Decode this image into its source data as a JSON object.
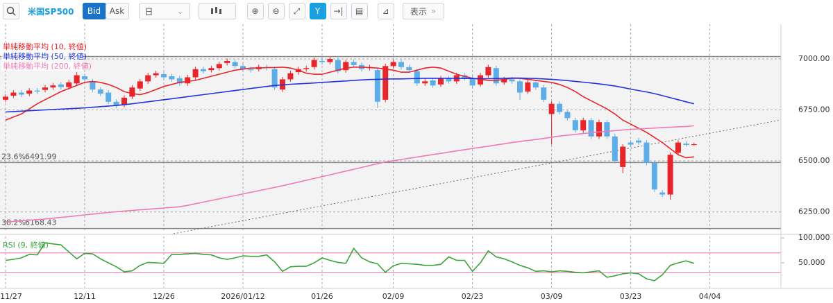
{
  "toolbar": {
    "symbol": "米国SP500",
    "bid": "Bid",
    "ask": "Ask",
    "period": "日",
    "display": "表示"
  },
  "chart_data": [
    {
      "type": "candlestick",
      "categories": [
        "11/27",
        null,
        null,
        null,
        null,
        null,
        null,
        null,
        null,
        null,
        "12/11",
        null,
        null,
        null,
        null,
        null,
        null,
        null,
        null,
        null,
        "12/26",
        null,
        null,
        null,
        null,
        null,
        null,
        null,
        null,
        null,
        "2026/01/12",
        null,
        null,
        null,
        null,
        null,
        null,
        null,
        null,
        null,
        "01/26",
        null,
        null,
        null,
        null,
        null,
        null,
        null,
        null,
        "02/09",
        null,
        null,
        null,
        null,
        null,
        null,
        null,
        null,
        null,
        "02/23",
        null,
        null,
        null,
        null,
        null,
        null,
        null,
        null,
        null,
        "03/09",
        null,
        null,
        null,
        null,
        null,
        null,
        null,
        null,
        null,
        "03/23",
        null,
        null,
        null,
        null,
        null,
        null,
        null,
        null,
        null,
        "04/04"
      ],
      "open": [
        6800,
        6820,
        6835,
        6830,
        6845,
        6848,
        6860,
        6875,
        6862,
        6880,
        6915,
        6890,
        6850,
        6835,
        6790,
        6775,
        6815,
        6855,
        6890,
        6920,
        6925,
        6915,
        6905,
        6880,
        6910,
        6950,
        6945,
        6955,
        6980,
        6985,
        6965,
        6950,
        6950,
        6960,
        6950,
        6850,
        6900,
        6935,
        6950,
        6960,
        6990,
        6985,
        6995,
        6945,
        6985,
        6970,
        6955,
        6945,
        6800,
        6965,
        6985,
        6960,
        6940,
        6880,
        6895,
        6875,
        6905,
        6890,
        6920,
        6905,
        6875,
        6920,
        6955,
        6885,
        6900,
        6890,
        6840,
        6885,
        6860,
        6730,
        6780,
        6740,
        6700,
        6650,
        6700,
        6620,
        6690,
        6620,
        6470,
        6590,
        6600,
        6590,
        6490,
        6345,
        6335,
        6540,
        6585,
        6578,
        null,
        null
      ],
      "high": [
        6827,
        6847,
        6847,
        6857,
        6857,
        6872,
        6882,
        6887,
        6897,
        6935,
        6927,
        6902,
        6862,
        6847,
        6802,
        6822,
        6872,
        6902,
        6932,
        6942,
        6937,
        6927,
        6917,
        6922,
        6962,
        6962,
        6967,
        6987,
        7002,
        6997,
        6977,
        6962,
        6972,
        6972,
        6962,
        6912,
        6942,
        6962,
        6967,
        7007,
        7012,
        7012,
        7007,
        6997,
        6997,
        6982,
        6972,
        6957,
        6977,
        6997,
        6997,
        6972,
        6952,
        6902,
        6907,
        6917,
        6917,
        6932,
        6932,
        6917,
        6932,
        6972,
        6967,
        6912,
        6912,
        6902,
        6897,
        6897,
        6872,
        6792,
        6792,
        6752,
        6712,
        6712,
        6712,
        6702,
        6702,
        6632,
        6582,
        6602,
        6612,
        6602,
        6502,
        6357,
        6542,
        6602,
        6597,
        6590,
        null,
        null
      ],
      "low": [
        6788,
        6808,
        6813,
        6818,
        6828,
        6836,
        6848,
        6850,
        6850,
        6868,
        6888,
        6838,
        6818,
        6778,
        6758,
        6763,
        6803,
        6843,
        6878,
        6908,
        6898,
        6888,
        6868,
        6868,
        6898,
        6928,
        6933,
        6943,
        6968,
        6953,
        6938,
        6933,
        6938,
        6943,
        6848,
        6838,
        6888,
        6923,
        6938,
        6948,
        6973,
        6973,
        6928,
        6933,
        6958,
        6938,
        6943,
        6760,
        6788,
        6953,
        6948,
        6933,
        6868,
        6868,
        6858,
        6863,
        6878,
        6878,
        6893,
        6858,
        6863,
        6908,
        6868,
        6873,
        6878,
        6800,
        6828,
        6848,
        6788,
        6580,
        6728,
        6698,
        6638,
        6638,
        6608,
        6608,
        6608,
        6488,
        6440,
        6568,
        6578,
        6478,
        6348,
        6323,
        6310,
        6528,
        6570,
        6575,
        null,
        null
      ],
      "close": [
        6815,
        6835,
        6825,
        6845,
        6840,
        6860,
        6870,
        6862,
        6885,
        6920,
        6900,
        6850,
        6830,
        6790,
        6770,
        6810,
        6860,
        6890,
        6920,
        6930,
        6910,
        6900,
        6880,
        6910,
        6950,
        6940,
        6955,
        6975,
        6990,
        6965,
        6950,
        6945,
        6960,
        6955,
        6860,
        6900,
        6930,
        6950,
        6955,
        6995,
        6985,
        7000,
        6940,
        6985,
        6970,
        6950,
        6960,
        6790,
        6965,
        6985,
        6960,
        6945,
        6880,
        6890,
        6870,
        6905,
        6890,
        6920,
        6905,
        6870,
        6920,
        6960,
        6880,
        6900,
        6890,
        6835,
        6885,
        6860,
        6800,
        6780,
        6740,
        6710,
        6650,
        6700,
        6620,
        6690,
        6620,
        6500,
        6570,
        6580,
        6590,
        6490,
        6360,
        6335,
        6530,
        6590,
        6578,
        6582,
        null,
        null
      ],
      "up_color": "#e8252b",
      "down_color": "#5dade8",
      "series": [
        {
          "name": "単純移動平均 (10, 終値)",
          "color": "#e8252b",
          "values": [
            6700,
            6715,
            6730,
            6755,
            6780,
            6800,
            6820,
            6840,
            6855,
            6870,
            6885,
            6890,
            6885,
            6875,
            6860,
            6840,
            6830,
            6825,
            6835,
            6850,
            6865,
            6875,
            6885,
            6890,
            6895,
            6905,
            6915,
            6925,
            6935,
            6945,
            6950,
            6955,
            6955,
            6958,
            6958,
            6960,
            6955,
            6945,
            6930,
            6925,
            6925,
            6935,
            6945,
            6955,
            6960,
            6960,
            6958,
            6955,
            6950,
            6945,
            6935,
            6935,
            6945,
            6955,
            6960,
            6955,
            6940,
            6925,
            6915,
            6905,
            6900,
            6895,
            6895,
            6900,
            6905,
            6905,
            6900,
            6895,
            6890,
            6885,
            6875,
            6860,
            6840,
            6815,
            6795,
            6775,
            6755,
            6730,
            6700,
            6680,
            6660,
            6640,
            6615,
            6590,
            6560,
            6530,
            6515,
            6520,
            null,
            null
          ]
        },
        {
          "name": "単純移動平均 (50, 終値)",
          "color": "#2233dd",
          "values": [
            6740,
            6742,
            6744,
            6746,
            6748,
            6750,
            6752,
            6754,
            6756,
            6758,
            6760,
            6763,
            6766,
            6769,
            6772,
            6776,
            6780,
            6785,
            6790,
            6795,
            6800,
            6805,
            6810,
            6815,
            6820,
            6825,
            6830,
            6835,
            6840,
            6845,
            6850,
            6855,
            6860,
            6865,
            6870,
            6873,
            6876,
            6878,
            6880,
            6882,
            6885,
            6887,
            6890,
            6892,
            6895,
            6897,
            6899,
            6900,
            6901,
            6902,
            6902,
            6903,
            6904,
            6905,
            6905,
            6905,
            6905,
            6905,
            6904,
            6904,
            6903,
            6903,
            6904,
            6905,
            6906,
            6906,
            6905,
            6904,
            6902,
            6900,
            6897,
            6894,
            6890,
            6886,
            6882,
            6878,
            6873,
            6867,
            6860,
            6852,
            6845,
            6838,
            6830,
            6820,
            6810,
            6800,
            6790,
            6780,
            null,
            null
          ]
        },
        {
          "name": "単純移動平均 (200, 終値)",
          "color": "#f07ab4",
          "values": [
            6200,
            6203,
            6206,
            6209,
            6212,
            6215,
            6219,
            6223,
            6227,
            6231,
            6235,
            6239,
            6243,
            6247,
            6251,
            6254,
            6257,
            6260,
            6263,
            6266,
            6269,
            6272,
            6275,
            6282,
            6290,
            6298,
            6306,
            6314,
            6322,
            6330,
            6338,
            6346,
            6354,
            6362,
            6370,
            6378,
            6387,
            6396,
            6405,
            6414,
            6423,
            6432,
            6441,
            6450,
            6459,
            6468,
            6477,
            6486,
            6495,
            6501,
            6507,
            6513,
            6519,
            6525,
            6531,
            6537,
            6543,
            6549,
            6555,
            6561,
            6567,
            6572,
            6578,
            6584,
            6590,
            6595,
            6600,
            6605,
            6610,
            6616,
            6622,
            6626,
            6630,
            6634,
            6638,
            6642,
            6645,
            6648,
            6652,
            6655,
            6657,
            6659,
            6661,
            6663,
            6665,
            6667,
            6669,
            6672,
            null,
            null
          ]
        }
      ],
      "ylim": [
        6150,
        7170
      ],
      "yticks": [
        {
          "value": 6250,
          "label": "6250.00"
        },
        {
          "value": 6500,
          "label": "6500.00"
        },
        {
          "value": 6750,
          "label": "6750.00"
        },
        {
          "value": 7000,
          "label": "7000.00"
        }
      ],
      "grid": true,
      "levels": [
        {
          "value": 7012
        },
        {
          "value": 6491.99,
          "label": "23.6%"
        },
        {
          "value": 6168.43,
          "label": "38.2%"
        }
      ]
    },
    {
      "type": "line",
      "series": [
        {
          "name": "RSI (9, 終値)",
          "color": "#3aa53a",
          "values": [
            55,
            57,
            60,
            67,
            66,
            90,
            88,
            86,
            72,
            58,
            69,
            68,
            58,
            50,
            42,
            32,
            34,
            45,
            51,
            50,
            49,
            67,
            67,
            68,
            69,
            67,
            66,
            60,
            57,
            60,
            64,
            63,
            63,
            66,
            52,
            33,
            42,
            43,
            43,
            50,
            60,
            55,
            51,
            49,
            79,
            60,
            52,
            48,
            31,
            44,
            49,
            48,
            47,
            45,
            45,
            47,
            62,
            55,
            55,
            33,
            50,
            74,
            62,
            58,
            52,
            45,
            40,
            33,
            34,
            32,
            34,
            33,
            31,
            30,
            32,
            34,
            21,
            24,
            28,
            30,
            28,
            18,
            14,
            26,
            45,
            50,
            54,
            49,
            null,
            null
          ]
        }
      ],
      "ylim": [
        0,
        103
      ],
      "yticks": [
        {
          "value": 50,
          "label": "50.000"
        },
        {
          "value": 100,
          "label": "100.000"
        }
      ],
      "levels": [
        70,
        30
      ],
      "level_color": "#f06eaa"
    }
  ]
}
